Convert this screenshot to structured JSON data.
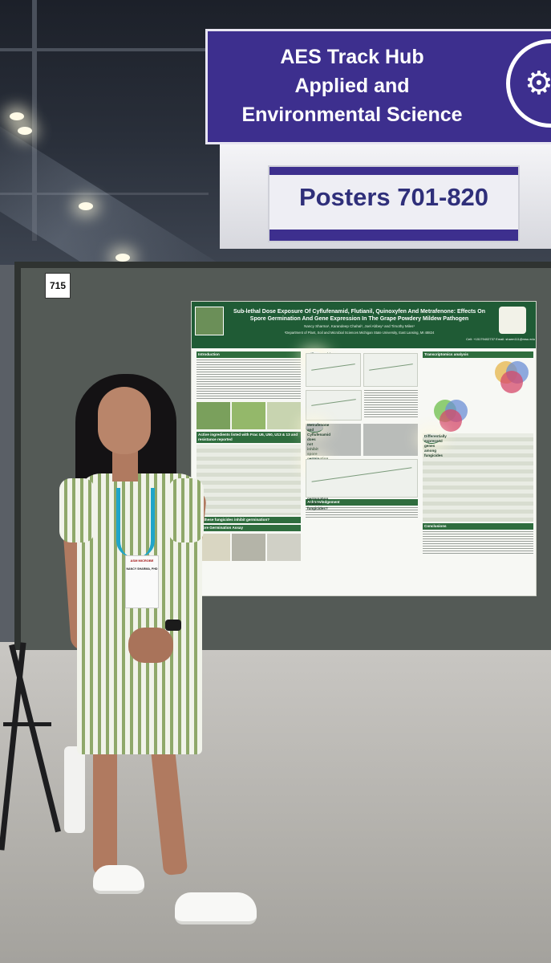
{
  "signs": {
    "track_hub_line1": "AES Track Hub",
    "track_hub_line2": "Applied and",
    "track_hub_line3": "Environmental Science",
    "posters_range": "Posters 701-820",
    "icon": "gear-icon"
  },
  "board": {
    "number": "715"
  },
  "poster": {
    "title_line1": "Sub-lethal Dose Exposure Of Cyflufenamid, Flutianil, Quinoxyfen And Metrafenone: Effects On",
    "title_line2": "Spore Germination And Gene Expression In The Grape Powdery Mildew Pathogen",
    "authors": "Nancy Sharma¹, Karandeep Chahal¹, Joel Abbey¹ and Timothy Miles¹",
    "affiliation": "¹Department of Plant, Soil and Microbial Sciences Michigan State University, East Lansing, MI 48824",
    "contact": "Cell: +15179402737 Email: sharm111@msu.edu",
    "sections": {
      "introduction": "Introduction",
      "active_ingredients": "Active ingredients listed with Frac U6, U50, U13 & 13 and resistance reported",
      "inhibit_question": "Do these fungicides inhibit germination?",
      "spore_assay": "Spore Germination Assay",
      "trifloxystrobin": "Trifloxystrobin, Quinoxyfen and Flutianil inhibit spore germination",
      "metrafenone": "Metrafenone and Cyflufenamid does not inhibit spore germination",
      "shared_genes": "Are there shared genes expressed during exposure to germination inhibitor fungicides?",
      "acknowledgement": "Acknowledgement",
      "transcriptomics": "Transcriptomics analysis",
      "diff_expressed": "Differentially expressed genes among fungicides",
      "conclusions": "Conclusions"
    }
  },
  "badge": {
    "org": "ASM MICROBE",
    "name": "NANCY SHARMA, PHD"
  },
  "colors": {
    "sign_purple": "#3d2f8e",
    "poster_green": "#1f5b35",
    "board_gray": "#545a56",
    "dress_stripe": "#8fa86a",
    "lanyard_blue": "#1fa5c9"
  }
}
